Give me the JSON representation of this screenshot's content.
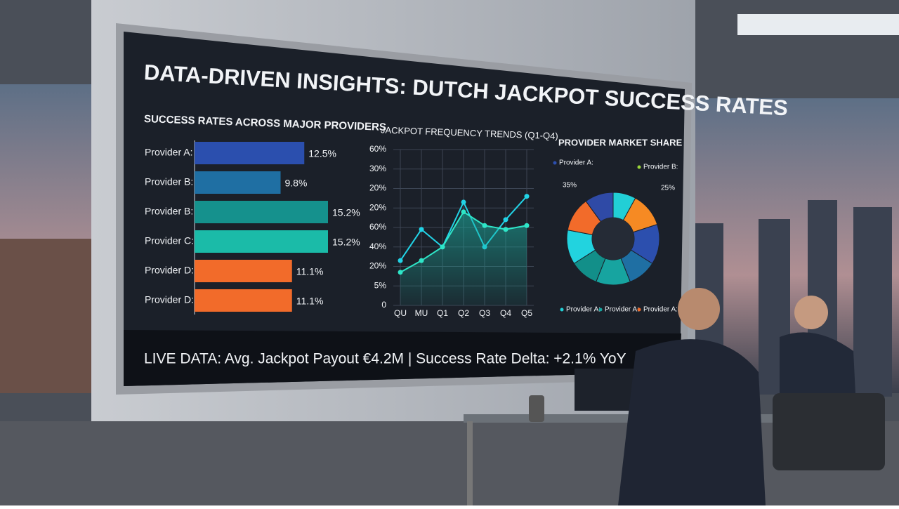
{
  "screen": {
    "title": "DATA-DRIVEN INSIGHTS: DUTCH JACKPOT SUCCESS RATES",
    "ticker": "LIVE DATA: Avg. Jackpot Payout €4.2M | Success Rate Delta: +2.1% YoY"
  },
  "chart_data": [
    {
      "type": "bar",
      "orientation": "horizontal",
      "title": "SUCCESS RATES ACROSS MAJOR PROVIDERS",
      "categories": [
        "Provider A:",
        "Provider B:",
        "Provider B:",
        "Provider C:",
        "Provider D:",
        "Provider D:"
      ],
      "values": [
        12.5,
        9.8,
        15.2,
        15.2,
        11.1,
        11.1
      ],
      "value_labels": [
        "12.5%",
        "9.8%",
        "15.2%",
        "15.2%",
        "11.1%",
        "11.1%"
      ],
      "colors": [
        "#2b4fae",
        "#1f6fa3",
        "#15918d",
        "#1bbba8",
        "#f26b2a",
        "#f26b2a"
      ]
    },
    {
      "type": "line",
      "title": "JACKPOT FREQUENCY TRENDS (Q1-Q4)",
      "categories": [
        "QU",
        "MU",
        "Q1",
        "Q2",
        "Q3",
        "Q4",
        "Q5"
      ],
      "ylim": [
        0,
        8
      ],
      "yticks": [
        0,
        {
          "value": 1,
          "label": "5%"
        },
        {
          "value": 2,
          "label": "20%"
        },
        {
          "value": 3,
          "label": "40%"
        },
        {
          "value": 4,
          "label": "60%"
        },
        {
          "value": 5,
          "label": "20%"
        },
        {
          "value": 6,
          "label": "20%"
        },
        {
          "value": 7,
          "label": "30%"
        },
        {
          "value": 8,
          "label": "60%"
        }
      ],
      "grid": true,
      "series": [
        {
          "color": "#22d3e6",
          "values": [
            2.3,
            3.9,
            3.0,
            5.3,
            3.0,
            4.4,
            5.6
          ]
        },
        {
          "color": "#2ee6c8",
          "values": [
            1.7,
            2.3,
            3.0,
            4.8,
            4.1,
            3.9,
            4.1
          ]
        }
      ]
    },
    {
      "type": "donut",
      "title": "PROVIDER MARKET SHARE",
      "values": [
        8,
        12,
        14,
        10,
        12,
        10,
        12,
        12,
        10
      ],
      "colors": [
        "#22cfd6",
        "#f68a23",
        "#2c4fae",
        "#1f6fa3",
        "#17a4a0",
        "#128f89",
        "#22d3df",
        "#f26b2a",
        "#2f4aa6"
      ],
      "annotations": [
        {
          "text": "Provider A:",
          "color": "#2c4fae"
        },
        {
          "text": "Provider B:",
          "color": "#9ad63a"
        },
        {
          "text": "35%"
        },
        {
          "text": "25%"
        }
      ],
      "legend": [
        {
          "name": "Provider A:",
          "color": "#22cfd6"
        },
        {
          "name": "Provider A:",
          "color": "#17a4a0"
        },
        {
          "name": "Provider A:",
          "color": "#f26b2a"
        }
      ]
    }
  ]
}
